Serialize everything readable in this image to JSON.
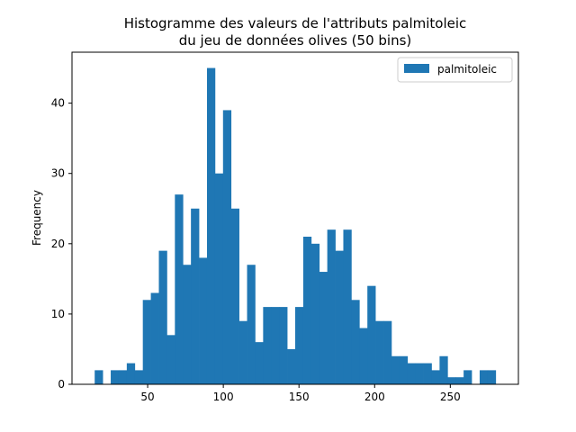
{
  "chart_data": {
    "type": "bar",
    "title_lines": [
      "Histogramme des valeurs de l'attributs palmitoleic",
      "du jeu de données olives (50 bins)"
    ],
    "xlabel": "",
    "ylabel": "Frequency",
    "xlim": [
      0,
      295
    ],
    "ylim": [
      0,
      47.25
    ],
    "xticks": [
      "50",
      "100",
      "150",
      "200",
      "250"
    ],
    "yticks": [
      "0",
      "10",
      "20",
      "30",
      "40"
    ],
    "legend": {
      "label": "palmitoleic",
      "position": "top-right"
    },
    "bar_color": "#1f77b4",
    "bins": {
      "start": 15,
      "end": 280,
      "counts": [
        2,
        0,
        2,
        2,
        3,
        2,
        12,
        13,
        19,
        7,
        27,
        17,
        25,
        18,
        45,
        30,
        39,
        25,
        9,
        17,
        6,
        11,
        11,
        11,
        5,
        11,
        21,
        20,
        16,
        22,
        19,
        22,
        12,
        8,
        14,
        9,
        9,
        4,
        4,
        3,
        3,
        3,
        2,
        4,
        1,
        1,
        2,
        0,
        2,
        2
      ]
    }
  }
}
